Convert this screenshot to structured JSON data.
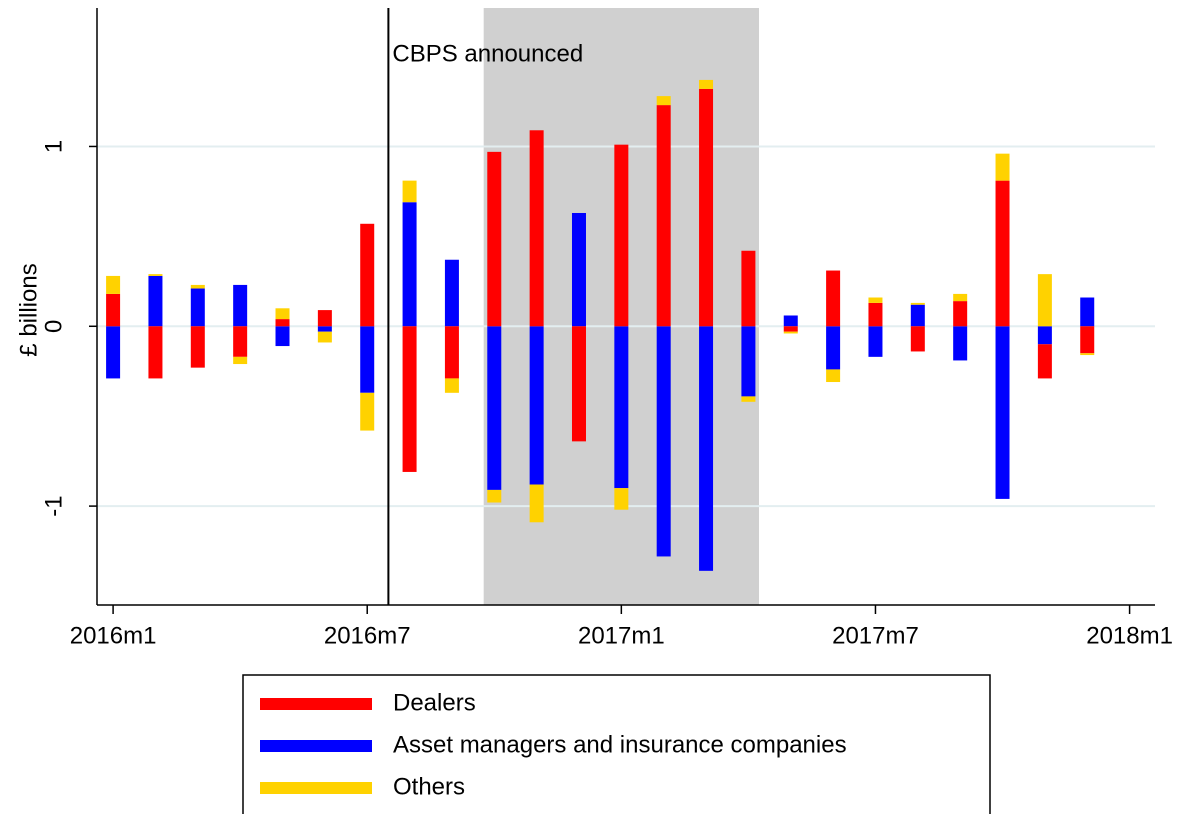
{
  "chart_data": {
    "type": "bar",
    "stacked": true,
    "y_label": "£ billions",
    "x": [
      672,
      673,
      674,
      675,
      676,
      677,
      678,
      679,
      680,
      681,
      682,
      683,
      684,
      685,
      686,
      687,
      688,
      689,
      690,
      691,
      692,
      693,
      694,
      695
    ],
    "series": [
      {
        "name": "Dealers",
        "color": "#ff0000",
        "values": [
          0.18,
          -0.29,
          -0.23,
          -0.17,
          0.04,
          0.09,
          0.57,
          -0.81,
          -0.29,
          0.97,
          1.09,
          -0.64,
          1.01,
          1.23,
          1.32,
          0.42,
          -0.03,
          0.31,
          0.13,
          -0.14,
          0.14,
          0.81,
          -0.19,
          -0.15
        ]
      },
      {
        "name": "Asset managers and insurance companies",
        "color": "#0000ff",
        "values": [
          -0.29,
          0.28,
          0.21,
          0.23,
          -0.11,
          -0.03,
          -0.37,
          0.69,
          0.37,
          -0.91,
          -0.88,
          0.63,
          -0.9,
          -1.28,
          -1.36,
          -0.39,
          0.06,
          -0.24,
          -0.17,
          0.12,
          -0.19,
          -0.96,
          -0.1,
          0.16
        ]
      },
      {
        "name": "Others",
        "color": "#ffd200",
        "values": [
          0.1,
          0.01,
          0.02,
          -0.04,
          0.06,
          -0.06,
          -0.21,
          0.12,
          -0.08,
          -0.07,
          -0.21,
          0,
          -0.12,
          0.05,
          0.05,
          -0.03,
          -0.01,
          -0.07,
          0.03,
          0.01,
          0.04,
          0.15,
          0.29,
          -0.01
        ]
      }
    ],
    "xlim": [
      671.62,
      696.6
    ],
    "xticks": [
      {
        "value": 672,
        "label": "2016m1"
      },
      {
        "value": 678,
        "label": "2016m7"
      },
      {
        "value": 684,
        "label": "2017m1"
      },
      {
        "value": 690,
        "label": "2017m7"
      },
      {
        "value": 696,
        "label": "2018m1"
      }
    ],
    "ylim": [
      -1.55,
      1.77
    ],
    "yticks": [
      -1,
      0,
      1
    ],
    "grid": true,
    "shaded_region": [
      680.75,
      687.25
    ],
    "annotations": [
      {
        "text": "CBPS announced",
        "x": 678.5
      }
    ],
    "legend": "bottom"
  }
}
